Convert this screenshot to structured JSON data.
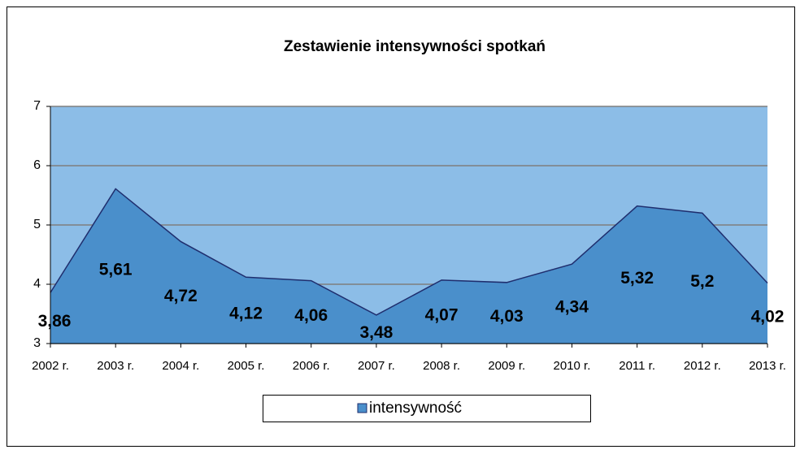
{
  "chart_data": {
    "type": "area",
    "title": "Zestawienie intensywności spotkań",
    "categories": [
      "2002 r.",
      "2003 r.",
      "2004 r.",
      "2005 r.",
      "2006 r.",
      "2007 r.",
      "2008 r.",
      "2009 r.",
      "2010 r.",
      "2011 r.",
      "2012 r.",
      "2013 r."
    ],
    "series": [
      {
        "name": "intensywność",
        "color": "#4a8fcb",
        "values": [
          3.86,
          5.61,
          4.72,
          4.12,
          4.06,
          3.48,
          4.07,
          4.03,
          4.34,
          5.32,
          5.2,
          4.02
        ],
        "value_labels": [
          "3,86",
          "5,61",
          "4,72",
          "4,12",
          "4,06",
          "3,48",
          "4,07",
          "4,03",
          "4,34",
          "5,32",
          "5,2",
          "4,02"
        ]
      }
    ],
    "ylim": [
      3,
      7
    ],
    "yticks": [
      3,
      4,
      5,
      6,
      7
    ],
    "grid": true
  }
}
